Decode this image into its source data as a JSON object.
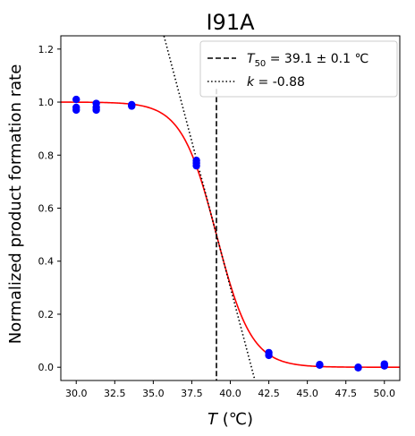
{
  "chart_data": {
    "type": "scatter",
    "title": "I91A",
    "xlabel": {
      "var": "T",
      "unit": " (℃)"
    },
    "ylabel": "Normalized product formation rate",
    "xlim": [
      29.0,
      51.0
    ],
    "ylim": [
      -0.05,
      1.25
    ],
    "xticks": [
      "30.0",
      "32.5",
      "35.0",
      "37.5",
      "40.0",
      "42.5",
      "45.0",
      "47.5",
      "50.0"
    ],
    "xtick_values": [
      30.0,
      32.5,
      35.0,
      37.5,
      40.0,
      42.5,
      45.0,
      47.5,
      50.0
    ],
    "yticks": [
      "0.0",
      "0.2",
      "0.4",
      "0.6",
      "0.8",
      "1.0",
      "1.2"
    ],
    "ytick_values": [
      0.0,
      0.2,
      0.4,
      0.6,
      0.8,
      1.0,
      1.2
    ],
    "points": [
      {
        "x": 30.0,
        "y": 1.01
      },
      {
        "x": 30.0,
        "y": 0.98
      },
      {
        "x": 30.0,
        "y": 0.97
      },
      {
        "x": 31.3,
        "y": 0.995
      },
      {
        "x": 31.3,
        "y": 0.98
      },
      {
        "x": 31.3,
        "y": 0.97
      },
      {
        "x": 33.6,
        "y": 0.99
      },
      {
        "x": 33.6,
        "y": 0.985
      },
      {
        "x": 37.8,
        "y": 0.78
      },
      {
        "x": 37.8,
        "y": 0.77
      },
      {
        "x": 37.8,
        "y": 0.76
      },
      {
        "x": 42.5,
        "y": 0.055
      },
      {
        "x": 42.5,
        "y": 0.045
      },
      {
        "x": 45.8,
        "y": 0.01
      },
      {
        "x": 45.8,
        "y": 0.008
      },
      {
        "x": 48.3,
        "y": 0.0
      },
      {
        "x": 48.3,
        "y": -0.002
      },
      {
        "x": 50.0,
        "y": 0.012
      },
      {
        "x": 50.0,
        "y": 0.005
      }
    ],
    "fit": {
      "type": "sigmoid",
      "T50": 39.1,
      "k": -0.88
    },
    "t50_line": {
      "x": 39.1,
      "y_top": 1.05
    },
    "tangent": {
      "slope": -0.22,
      "x0": 39.1,
      "y0": 0.5
    },
    "legend": {
      "position": "top-right",
      "entries": [
        {
          "style": "dashed",
          "var": "T",
          "sub": "50",
          "text": " = 39.1 ± 0.1 ℃"
        },
        {
          "style": "dotted",
          "var": "k",
          "sub": "",
          "text": " = -0.88"
        }
      ]
    },
    "colors": {
      "points": "#0000ff",
      "fit": "#ff0000",
      "lines": "#000000"
    }
  }
}
